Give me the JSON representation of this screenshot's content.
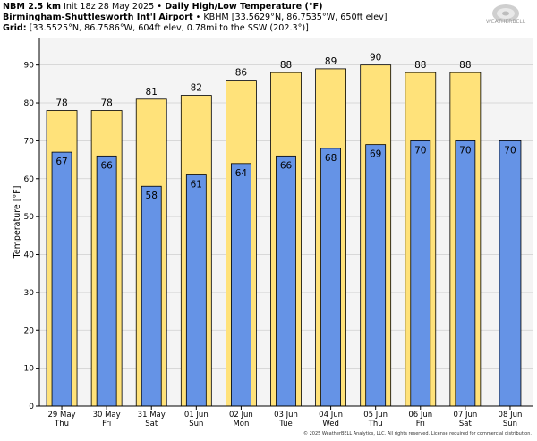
{
  "header": {
    "line1_bold": "NBM 2.5 km",
    "line1_init": "Init 18z 28 May 2025",
    "line1_sep": "•",
    "line1_title": "Daily High/Low Temperature (°F)",
    "line2_bold": "Birmingham-Shuttlesworth Int'l Airport",
    "line2_rest": "• KBHM [33.5629°N, 86.7535°W, 650ft elev]",
    "line3_bold": "Grid:",
    "line3_rest": "[33.5525°N, 86.7586°W, 604ft elev, 0.78mi to the SSW (202.3°)]"
  },
  "logo": {
    "text": "WEATHERBELL"
  },
  "copyright": "© 2025 WeatherBELL Analytics, LLC. All rights reserved. License required for commercial distribution.",
  "colors": {
    "high_bar": "#ffe27a",
    "low_bar": "#6593e6",
    "plot_bg": "#f4f4f4",
    "grid": "#cfcfcf"
  },
  "chart_data": {
    "type": "bar",
    "ylabel": "Temperature [°F]",
    "ylim": [
      0,
      97
    ],
    "yticks": [
      0,
      10,
      20,
      30,
      40,
      50,
      60,
      70,
      80,
      90
    ],
    "grid": true,
    "categories": [
      {
        "date": "29 May",
        "day": "Thu"
      },
      {
        "date": "30 May",
        "day": "Fri"
      },
      {
        "date": "31 May",
        "day": "Sat"
      },
      {
        "date": "01 Jun",
        "day": "Sun"
      },
      {
        "date": "02 Jun",
        "day": "Mon"
      },
      {
        "date": "03 Jun",
        "day": "Tue"
      },
      {
        "date": "04 Jun",
        "day": "Wed"
      },
      {
        "date": "05 Jun",
        "day": "Thu"
      },
      {
        "date": "06 Jun",
        "day": "Fri"
      },
      {
        "date": "07 Jun",
        "day": "Sat"
      },
      {
        "date": "08 Jun",
        "day": "Sun"
      }
    ],
    "series": [
      {
        "values": [
          78,
          78,
          81,
          82,
          86,
          88,
          89,
          90,
          88,
          88,
          null
        ]
      },
      {
        "values": [
          67,
          66,
          58,
          61,
          64,
          66,
          68,
          69,
          70,
          70,
          70
        ]
      }
    ],
    "high_values": [
      78,
      78,
      81,
      82,
      86,
      88,
      89,
      90,
      88,
      88,
      null
    ],
    "low_values": [
      67,
      66,
      58,
      61,
      64,
      66,
      68,
      69,
      70,
      70,
      70
    ],
    "high_labels": [
      "78",
      "78",
      "81",
      "82",
      "86",
      "88",
      "89",
      "90",
      "88",
      "88",
      ""
    ],
    "low_labels": [
      "67",
      "66",
      "58",
      "61",
      "64",
      "66",
      "68",
      "69",
      "70",
      "70",
      "70"
    ]
  }
}
